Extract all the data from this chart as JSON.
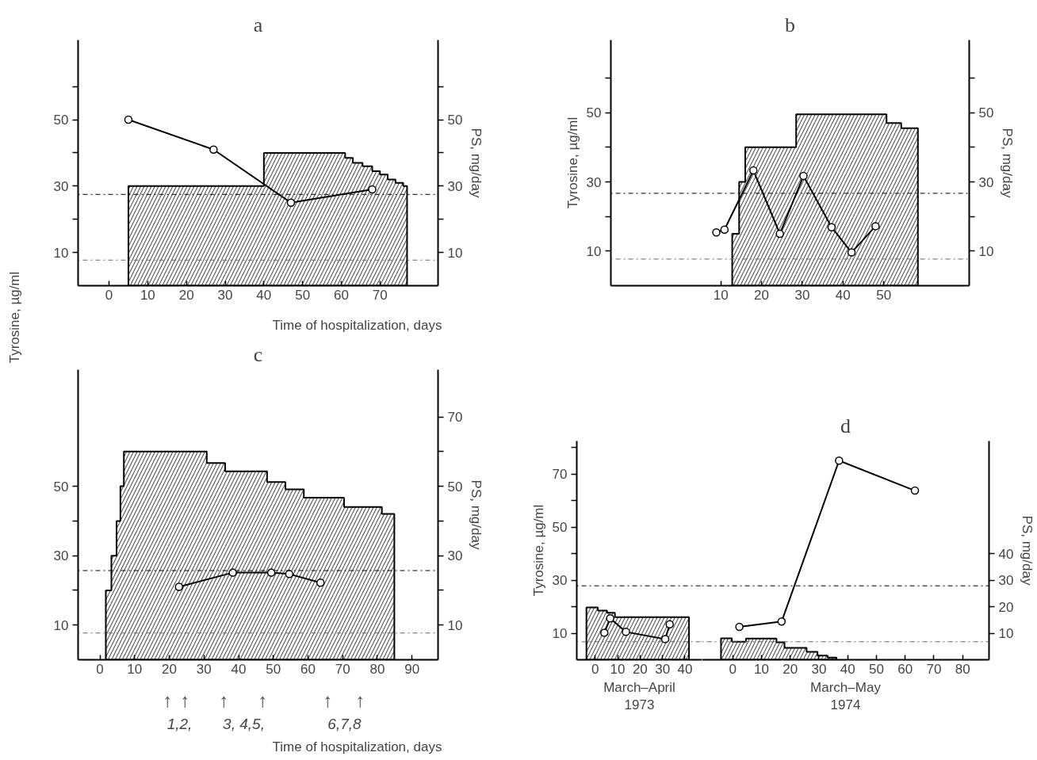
{
  "chart_data": [
    {
      "type": "line",
      "title": "a",
      "xlabel": "Time of hospitalization, days",
      "y2label": "PS, mg/day",
      "xlim": [
        -8,
        85
      ],
      "xticks": [
        0,
        10,
        20,
        30,
        40,
        50,
        60,
        70
      ],
      "ylim": [
        0,
        74
      ],
      "yticks": [
        10,
        {
          "value": 20,
          "label": null
        },
        30,
        {
          "value": 40,
          "label": null
        },
        50,
        {
          "value": 60,
          "label": null
        }
      ],
      "y2lim": [
        0,
        74
      ],
      "y2ticks": [
        10,
        {
          "value": 20,
          "label": null
        },
        30,
        {
          "value": 40,
          "label": null
        },
        50,
        {
          "value": 60,
          "label": null
        }
      ],
      "ref_lines": [
        {
          "axis": "y",
          "value": 27.5,
          "line_style": "dotted",
          "color": "#000000"
        },
        {
          "axis": "y",
          "value": 7.7,
          "line_style": "dotted",
          "color": "#666666"
        }
      ],
      "series": [
        {
          "type": "area",
          "color": "#000000",
          "x": [
            5,
            40,
            61,
            63,
            65.5,
            68,
            70,
            72,
            74,
            76,
            77
          ],
          "values": [
            30,
            40,
            38.5,
            37,
            36,
            34.5,
            33.5,
            32,
            31,
            30,
            30
          ]
        },
        {
          "color": "#000000",
          "marker": "circle",
          "x": [
            5,
            27,
            47,
            68
          ],
          "values": [
            50,
            41,
            25,
            29
          ]
        }
      ]
    },
    {
      "type": "line",
      "title": "b",
      "ylabel": "Tyrosine, µg/ml",
      "y2label": "PS, mg/day",
      "xlim": [
        -17,
        71
      ],
      "xticks": [
        10,
        20,
        30,
        40,
        50
      ],
      "ylim": [
        0,
        71
      ],
      "yticks": [
        10,
        {
          "value": 20,
          "label": null
        },
        30,
        {
          "value": 40,
          "label": null
        },
        50,
        {
          "value": 60,
          "label": null
        }
      ],
      "y2lim": [
        0,
        71
      ],
      "y2ticks": [
        10,
        {
          "value": 20,
          "label": null
        },
        30,
        {
          "value": 40,
          "label": null
        },
        50,
        {
          "value": 60,
          "label": null
        }
      ],
      "ref_lines": [
        {
          "axis": "y",
          "value": 26.7,
          "line_style": "dotted",
          "color": "#000000"
        },
        {
          "axis": "y",
          "value": 7.7,
          "line_style": "dotted",
          "color": "#666666"
        }
      ],
      "series": [
        {
          "type": "area",
          "color": "#000000",
          "x": [
            12.8,
            14.5,
            16,
            28.5,
            50.7,
            54.3,
            58.4
          ],
          "values": [
            15,
            30,
            40,
            49.5,
            47,
            45.5,
            45.5
          ]
        },
        {
          "color": "#000000",
          "marker": "circle",
          "x": [
            8.9,
            10.9,
            18,
            24.5,
            30.3,
            37.2,
            42.1,
            48
          ],
          "values": [
            15.4,
            16.2,
            33.3,
            15,
            31.7,
            16.9,
            9.6,
            17.2
          ]
        }
      ]
    },
    {
      "type": "line",
      "title": "c",
      "xlabel": "Time of hospitalization, days",
      "ylabel": "Tyrosine, µg/ml",
      "y2label": "PS, mg/day",
      "xlim": [
        -6.3,
        97.5
      ],
      "xticks": [
        0,
        10,
        20,
        30,
        40,
        50,
        60,
        70,
        80,
        90
      ],
      "ylim": [
        0,
        83.6
      ],
      "yticks": [
        10,
        {
          "value": 20,
          "label": null
        },
        30,
        {
          "value": 40,
          "label": null
        },
        50
      ],
      "y2lim": [
        0,
        83.6
      ],
      "y2ticks": [
        10,
        {
          "value": 20,
          "label": null
        },
        30,
        {
          "value": 40,
          "label": null
        },
        50,
        {
          "value": 60,
          "label": null
        },
        70
      ],
      "ref_lines": [
        {
          "axis": "y",
          "value": 25.7,
          "line_style": "dotted",
          "color": "#000000"
        },
        {
          "axis": "y",
          "value": 7.7,
          "line_style": "dotted",
          "color": "#666666"
        }
      ],
      "annotations": [
        "↑",
        "↑",
        "↑",
        "↑",
        "↑",
        "↑",
        "1,2,",
        "3, 4,5,",
        "6,7,8"
      ],
      "series": [
        {
          "type": "area",
          "color": "#000000",
          "x": [
            1.7,
            3.3,
            4.8,
            5.9,
            6.9,
            30.8,
            36.1,
            48.2,
            53.5,
            58.8,
            70.4,
            81.3,
            84.9
          ],
          "values": [
            20,
            30,
            40,
            50,
            60,
            56.7,
            54.3,
            51.2,
            49.1,
            46.7,
            44,
            42,
            42
          ]
        },
        {
          "color": "#000000",
          "marker": "circle",
          "x": [
            22.8,
            38.3,
            49.4,
            54.6,
            63.6
          ],
          "values": [
            21,
            25.1,
            25.1,
            24.7,
            22.2
          ]
        }
      ]
    },
    {
      "type": "line",
      "xlabel": "March–April\n1973",
      "ylabel": "Tyrosine, µg/ml",
      "xlim": [
        -8.2,
        47.6
      ],
      "xticks": [
        0,
        10,
        20,
        30,
        40
      ],
      "ylim": [
        0,
        82.5
      ],
      "yticks": [
        10,
        {
          "value": 20,
          "label": null
        },
        30,
        {
          "value": 40,
          "label": null
        },
        50,
        {
          "value": 60,
          "label": null
        },
        70,
        {
          "value": 80,
          "label": null
        }
      ],
      "ref_lines": [
        {
          "axis": "y",
          "value": 27.9,
          "line_style": "dotted",
          "color": "#000000"
        },
        {
          "axis": "y",
          "value": 6.8,
          "line_style": "dotted",
          "color": "#666666"
        }
      ],
      "series": [
        {
          "type": "area",
          "color": "#000000",
          "x": [
            -3.9,
            1.2,
            5.3,
            8.8,
            41.8
          ],
          "values": [
            19.7,
            18.5,
            17.7,
            16.1,
            16.1
          ]
        },
        {
          "color": "#000000",
          "marker": "circle",
          "x": [
            4.1,
            6.7,
            13.7,
            31.2,
            33.2
          ],
          "values": [
            10.2,
            15.6,
            10.5,
            7.8,
            13.4
          ]
        }
      ]
    },
    {
      "type": "line",
      "title": "d",
      "xlabel": "March–May\n1974",
      "y2label": "PS, mg/day",
      "xlim": [
        -10.7,
        89.2
      ],
      "xticks": [
        0,
        10,
        20,
        30,
        40,
        50,
        60,
        70,
        80
      ],
      "y2lim": [
        0,
        82.5
      ],
      "y2ticks": [
        10,
        20,
        30,
        40
      ],
      "ref_lines": [
        {
          "axis": "y2",
          "value": 27.9,
          "line_style": "dotted",
          "color": "#000000"
        },
        {
          "axis": "y2",
          "value": 6.8,
          "line_style": "dotted",
          "color": "#666666"
        }
      ],
      "series": [
        {
          "type": "area",
          "axis": "y2",
          "color": "#000000",
          "x": [
            -4.1,
            -0.3,
            4.6,
            15.2,
            18,
            25.7,
            29.5,
            33,
            36.1
          ],
          "values": [
            8.1,
            6.8,
            8.0,
            6.6,
            4.5,
            3.0,
            1.6,
            0.8,
            0.8
          ]
        },
        {
          "color": "#000000",
          "marker": "circle",
          "axis": "y2",
          "x": [
            2.3,
            17,
            37,
            63.4
          ],
          "values": [
            12.4,
            14.4,
            75.1,
            63.8
          ]
        }
      ]
    }
  ]
}
